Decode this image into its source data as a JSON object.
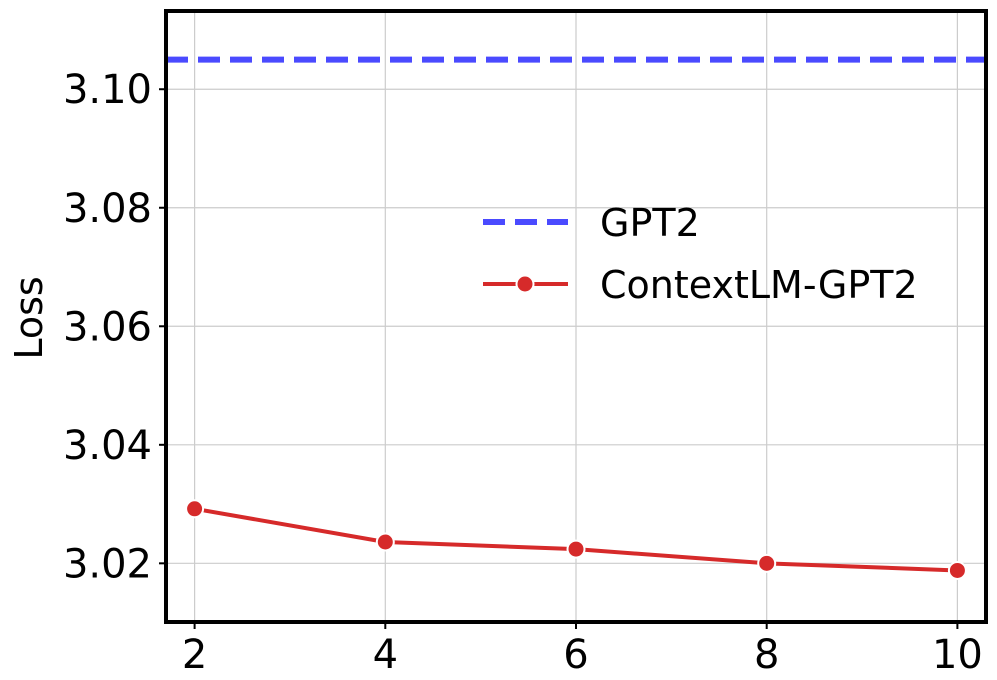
{
  "chart_data": {
    "type": "line",
    "title": "",
    "xlabel": "",
    "ylabel": "Loss",
    "x": [
      2,
      4,
      6,
      8,
      10
    ],
    "xlim": [
      1.7,
      10.3
    ],
    "ylim": [
      3.0101,
      3.1132
    ],
    "xticks": [
      2,
      4,
      6,
      8,
      10
    ],
    "xtick_labels": [
      "2",
      "4",
      "6",
      "8",
      "10"
    ],
    "yticks": [
      3.02,
      3.04,
      3.06,
      3.08,
      3.1
    ],
    "ytick_labels": [
      "3.02",
      "3.04",
      "3.06",
      "3.08",
      "3.10"
    ],
    "grid": true,
    "legend_position": "center-right",
    "series": [
      {
        "name": "GPT2",
        "style": "dashed",
        "color": "#4a4aff",
        "y_constant": 3.105
      },
      {
        "name": "ContextLM-GPT2",
        "style": "solid-with-markers",
        "color": "#d62a2a",
        "values": [
          3.0292,
          3.0236,
          3.0224,
          3.02,
          3.0188
        ]
      }
    ]
  }
}
